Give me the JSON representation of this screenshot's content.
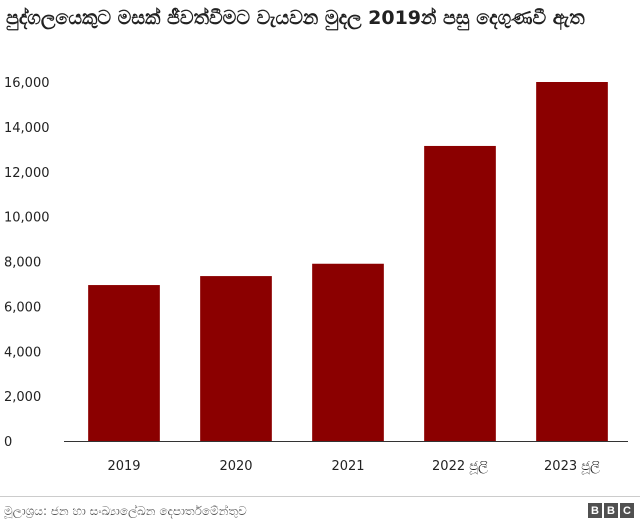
{
  "chart_data": {
    "type": "bar",
    "title": "පුද්ගලයෙකුට මසක් ජීවත්වීමට වැයවන මුදල 2019න් පසු දෙගුණවී ඇත",
    "categories": [
      "2019",
      "2020",
      "2021",
      "2022 ජූලි",
      "2023 ජූලි"
    ],
    "values": [
      6950,
      7350,
      7900,
      13150,
      16000
    ],
    "ylim": [
      0,
      16000
    ],
    "yticks": [
      0,
      2000,
      4000,
      6000,
      8000,
      10000,
      12000,
      14000,
      16000
    ],
    "ytick_labels": [
      "0",
      "2,000",
      "4,000",
      "6,000",
      "8,000",
      "10,000",
      "12,000",
      "14,000",
      "16,000"
    ],
    "grid": false,
    "bar_color": "#8b0000"
  },
  "footer": {
    "source": "මූලාශ්‍රය: ජන හා සංඛ්‍යාලේඛන දෙපාර්තමේන්තුව",
    "logo": [
      "B",
      "B",
      "C"
    ]
  }
}
